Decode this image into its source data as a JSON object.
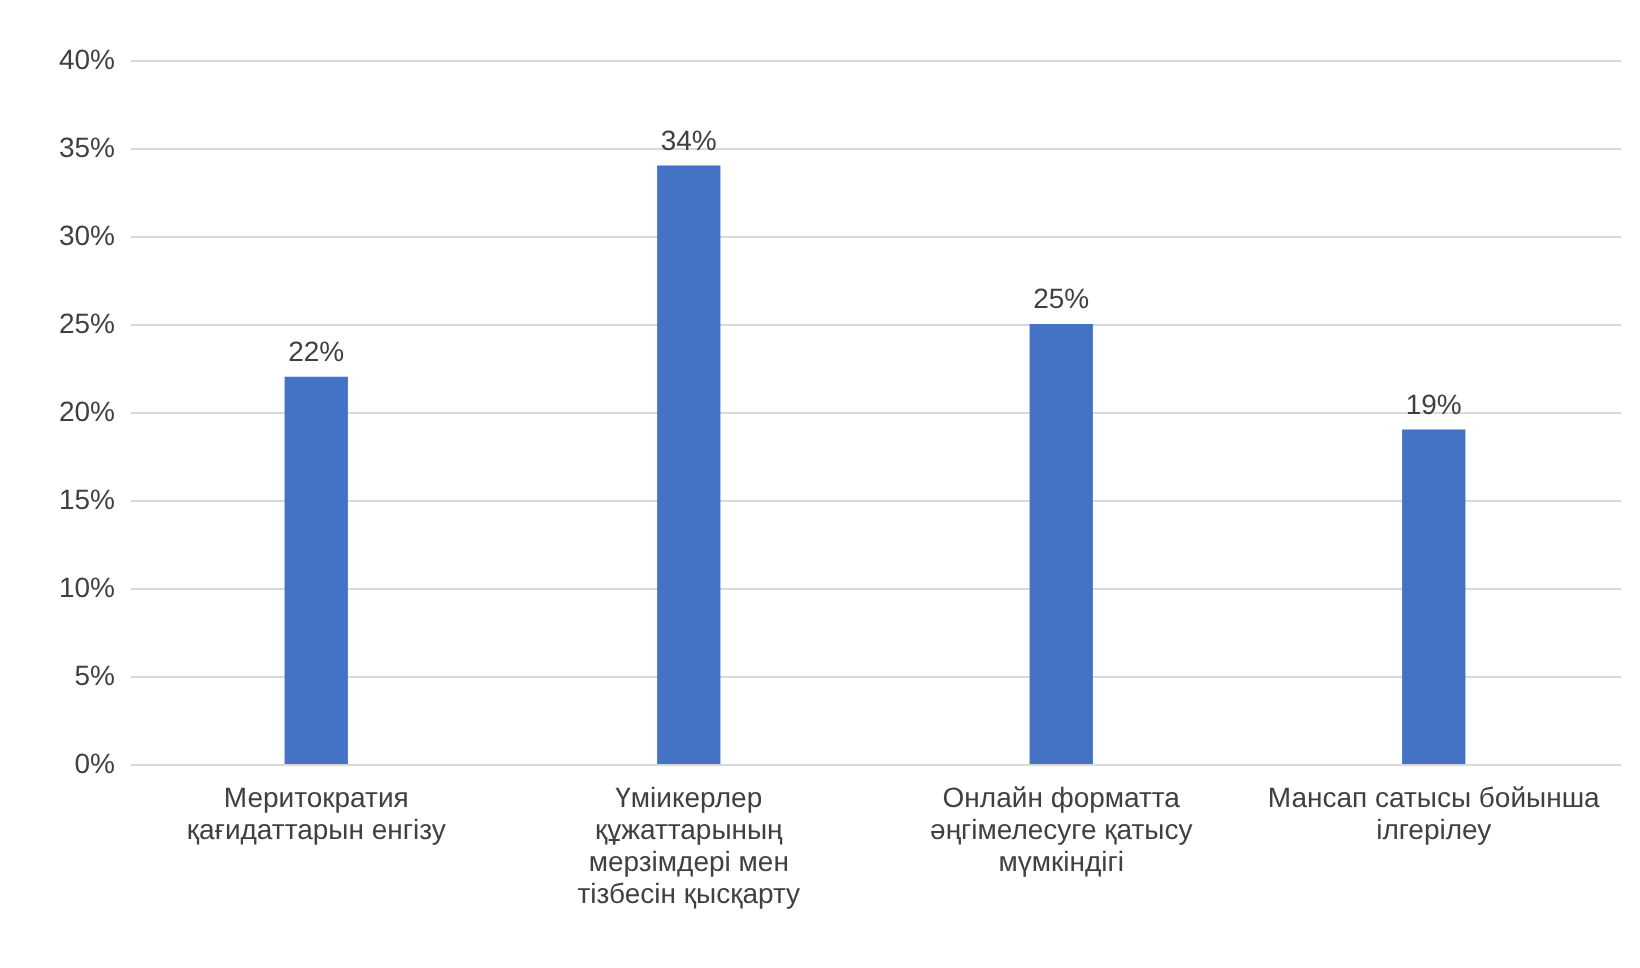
{
  "chart_data": {
    "type": "bar",
    "categories": [
      "Меритократия қағидаттарын енгізу",
      "Үміикерлер құжаттарының мерзімдері мен тізбесін қысқарту",
      "Онлайн форматта әңгімелесуге қатысу мүмкіндігі",
      "Мансап сатысы бойынша ілгерілеу"
    ],
    "values": [
      22,
      34,
      25,
      19
    ],
    "value_labels": [
      "22%",
      "34%",
      "25%",
      "19%"
    ],
    "color": "#4472c4",
    "ylim": [
      0,
      40
    ],
    "yticks": [
      {
        "value": 0,
        "label": "0%"
      },
      {
        "value": 5,
        "label": "5%"
      },
      {
        "value": 10,
        "label": "10%"
      },
      {
        "value": 15,
        "label": "15%"
      },
      {
        "value": 20,
        "label": "20%"
      },
      {
        "value": 25,
        "label": "25%"
      },
      {
        "value": 30,
        "label": "30%"
      },
      {
        "value": 35,
        "label": "35%"
      },
      {
        "value": 40,
        "label": "40%"
      }
    ],
    "grid": true
  }
}
